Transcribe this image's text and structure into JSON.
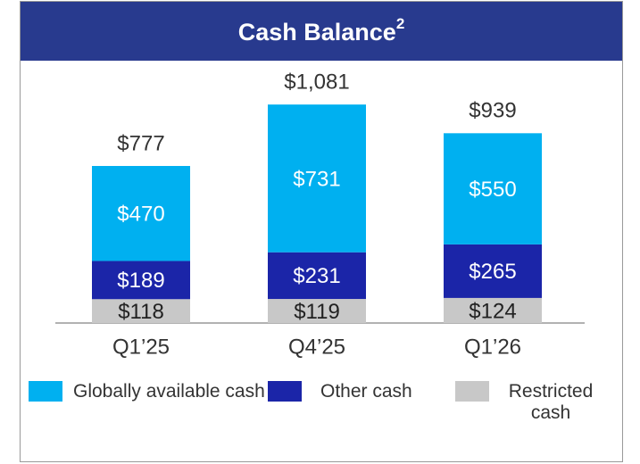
{
  "chart_data": {
    "type": "stacked_bar",
    "title": "Cash Balance",
    "title_superscript": "2",
    "categories": [
      "Q1’25",
      "Q4’25",
      "Q1’26"
    ],
    "series": [
      {
        "name": "Restricted cash",
        "color": "#c8c8c8",
        "label_color": "#222222",
        "values": [
          118,
          119,
          124
        ],
        "value_labels": [
          "$118",
          "$119",
          "$124"
        ]
      },
      {
        "name": "Other cash",
        "color": "#1b25a8",
        "label_color": "#ffffff",
        "values": [
          189,
          231,
          265
        ],
        "value_labels": [
          "$189",
          "$231",
          "$265"
        ]
      },
      {
        "name": "Globally available cash",
        "color": "#00b0f0",
        "label_color": "#ffffff",
        "values": [
          470,
          731,
          550
        ],
        "value_labels": [
          "$470",
          "$731",
          "$550"
        ]
      }
    ],
    "totals": [
      777,
      1081,
      939
    ],
    "total_labels": [
      "$777",
      "$1,081",
      "$939"
    ],
    "legend_order": [
      2,
      1,
      0
    ]
  }
}
